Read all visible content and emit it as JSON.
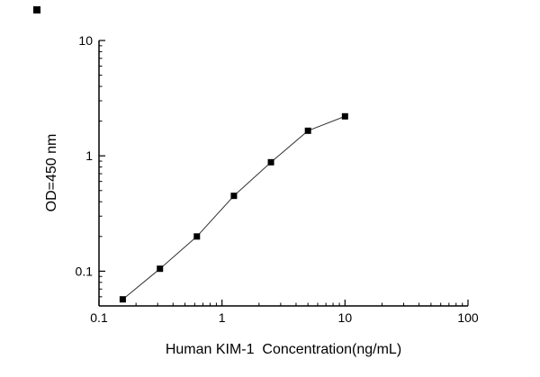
{
  "figure": {
    "background": "#ffffff",
    "axis_color": "#000000",
    "marker_color": "#000000",
    "line_color": "#333333"
  },
  "chart_data": {
    "type": "line",
    "title": "",
    "xlabel": "Human KIM-1  Concentration(ng/mL)",
    "ylabel": "OD=450 nm",
    "x_scale": "log",
    "y_scale": "log",
    "xlim": [
      0.1,
      100
    ],
    "ylim": [
      0.05,
      10
    ],
    "grid": false,
    "legend_position": "none",
    "xticks": {
      "values": [
        0.1,
        1,
        10,
        100
      ],
      "labels": [
        "0.1",
        "1",
        "10",
        "100"
      ]
    },
    "yticks": {
      "values": [
        0.1,
        1,
        10
      ],
      "labels": [
        "0.1",
        "1",
        "10"
      ]
    },
    "series": [
      {
        "marker": "filled-square",
        "color": "#000000",
        "line_color": "#333333",
        "points": [
          {
            "x": 0.156,
            "y": 0.057
          },
          {
            "x": 0.313,
            "y": 0.105
          },
          {
            "x": 0.625,
            "y": 0.2
          },
          {
            "x": 1.25,
            "y": 0.45
          },
          {
            "x": 2.5,
            "y": 0.88
          },
          {
            "x": 5,
            "y": 1.65
          },
          {
            "x": 10,
            "y": 2.2
          }
        ]
      }
    ]
  }
}
